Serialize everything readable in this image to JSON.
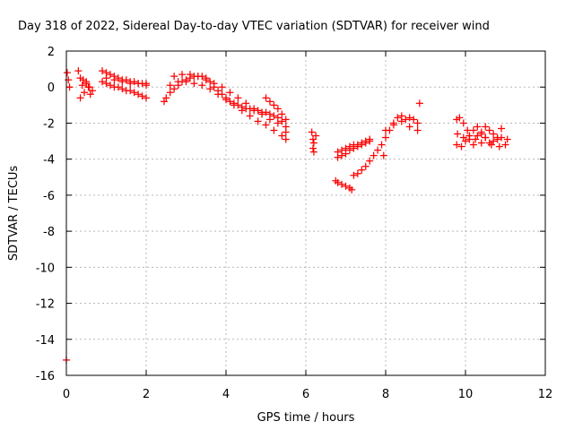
{
  "chart_data": {
    "type": "scatter",
    "title": "Day 318 of 2022, Sidereal Day-to-day VTEC variation (SDTVAR) for receiver wind",
    "xlabel": "GPS time / hours",
    "ylabel": "SDTVAR / TECUs",
    "xlim": [
      0,
      12
    ],
    "ylim": [
      -16,
      2
    ],
    "x_ticks": [
      0,
      2,
      4,
      6,
      8,
      10,
      12
    ],
    "x_tick_labels": [
      "0",
      "2",
      "4",
      "6",
      "8",
      "10",
      "12"
    ],
    "y_ticks": [
      -16,
      -14,
      -12,
      -10,
      -8,
      -6,
      -4,
      -2,
      0,
      2
    ],
    "y_tick_labels": [
      "-16",
      "-14",
      "-12",
      "-10",
      "-8",
      "-6",
      "-4",
      "-2",
      "0",
      "2"
    ],
    "grid": true,
    "marker": "plus",
    "color": "#ff0000",
    "series": [
      {
        "name": "SDTVAR",
        "x": [
          0.0,
          0.02,
          0.05,
          0.08,
          0.3,
          0.35,
          0.4,
          0.45,
          0.5,
          0.55,
          0.6,
          0.65,
          0.35,
          0.42,
          0.5,
          0.58,
          0.9,
          1.0,
          1.1,
          1.2,
          1.3,
          1.4,
          1.5,
          1.6,
          1.7,
          1.8,
          1.9,
          2.0,
          0.9,
          1.0,
          1.1,
          1.2,
          1.3,
          1.4,
          1.5,
          1.6,
          1.7,
          1.8,
          1.9,
          2.0,
          1.0,
          1.2,
          1.4,
          1.6,
          1.8,
          2.0,
          2.45,
          2.5,
          2.6,
          2.7,
          2.8,
          2.9,
          3.0,
          3.1,
          3.2,
          3.3,
          3.4,
          3.5,
          3.6,
          3.7,
          3.8,
          3.9,
          4.0,
          4.1,
          4.2,
          4.3,
          4.4,
          4.5,
          4.6,
          4.7,
          4.8,
          4.9,
          5.0,
          5.1,
          5.2,
          5.3,
          5.4,
          5.5,
          2.6,
          2.8,
          3.0,
          3.2,
          3.4,
          3.6,
          3.8,
          4.0,
          4.2,
          4.4,
          4.6,
          4.8,
          5.0,
          5.2,
          5.4,
          5.5,
          2.7,
          2.9,
          3.1,
          3.3,
          3.5,
          3.7,
          3.9,
          4.1,
          4.3,
          4.5,
          4.7,
          4.9,
          5.1,
          5.3,
          5.5,
          5.0,
          5.1,
          5.2,
          5.3,
          5.4,
          5.5,
          6.15,
          6.18,
          6.2,
          6.25,
          6.18,
          6.2,
          6.8,
          6.9,
          7.0,
          7.1,
          7.2,
          7.3,
          7.4,
          7.5,
          7.6,
          6.8,
          6.9,
          7.0,
          7.1,
          7.2,
          7.3,
          7.4,
          7.5,
          7.6,
          6.75,
          6.8,
          6.9,
          7.0,
          7.1,
          7.15,
          7.2,
          7.3,
          7.4,
          7.5,
          7.6,
          7.7,
          7.8,
          7.9,
          7.95,
          8.0,
          8.1,
          8.2,
          8.3,
          8.4,
          8.5,
          8.6,
          8.7,
          8.8,
          8.0,
          8.2,
          8.4,
          8.6,
          8.8,
          8.85,
          9.78,
          9.85,
          9.95,
          10.05,
          10.1,
          10.2,
          10.3,
          10.4,
          10.5,
          9.78,
          9.9,
          10.0,
          10.1,
          10.2,
          10.3,
          10.4,
          10.5,
          9.8,
          9.95,
          10.1,
          10.25,
          10.4,
          10.5,
          10.6,
          10.7,
          10.8,
          10.9,
          10.6,
          10.7,
          10.8,
          10.9,
          10.65,
          10.85,
          11.0,
          11.05
        ],
        "y": [
          -15.15,
          0.8,
          0.4,
          0.0,
          0.9,
          0.5,
          0.1,
          -0.3,
          0.3,
          0.0,
          -0.4,
          -0.2,
          -0.6,
          0.4,
          0.2,
          0.0,
          0.9,
          0.8,
          0.7,
          0.6,
          0.5,
          0.4,
          0.4,
          0.3,
          0.3,
          0.2,
          0.2,
          0.2,
          0.3,
          0.2,
          0.1,
          0.0,
          0.0,
          -0.1,
          -0.2,
          -0.2,
          -0.3,
          -0.4,
          -0.5,
          -0.6,
          0.5,
          0.4,
          0.3,
          0.2,
          0.2,
          0.1,
          -0.8,
          -0.6,
          -0.3,
          -0.1,
          0.1,
          0.3,
          0.4,
          0.5,
          0.6,
          0.6,
          0.6,
          0.5,
          0.3,
          0.0,
          -0.2,
          -0.4,
          -0.6,
          -0.8,
          -0.9,
          -1.0,
          -1.1,
          -1.2,
          -1.2,
          -1.3,
          -1.3,
          -1.4,
          -1.4,
          -1.5,
          -1.6,
          -1.7,
          -1.9,
          -2.2,
          0.1,
          0.3,
          0.3,
          0.2,
          0.1,
          -0.1,
          -0.4,
          -0.7,
          -1.0,
          -1.3,
          -1.6,
          -1.9,
          -2.1,
          -2.4,
          -2.7,
          -2.9,
          0.6,
          0.7,
          0.7,
          0.6,
          0.4,
          0.2,
          0.0,
          -0.3,
          -0.6,
          -0.9,
          -1.2,
          -1.5,
          -1.8,
          -2.0,
          -2.5,
          -0.6,
          -0.8,
          -1.0,
          -1.2,
          -1.5,
          -1.8,
          -2.5,
          -2.9,
          -3.1,
          -2.7,
          -3.4,
          -3.6,
          -3.6,
          -3.5,
          -3.4,
          -3.3,
          -3.2,
          -3.2,
          -3.1,
          -3.0,
          -2.9,
          -3.9,
          -3.8,
          -3.7,
          -3.5,
          -3.4,
          -3.3,
          -3.2,
          -3.1,
          -3.0,
          -5.2,
          -5.3,
          -5.4,
          -5.5,
          -5.6,
          -5.7,
          -4.9,
          -4.8,
          -4.6,
          -4.4,
          -4.1,
          -3.8,
          -3.5,
          -3.2,
          -3.8,
          -2.8,
          -2.4,
          -2.0,
          -1.7,
          -1.6,
          -1.8,
          -1.7,
          -1.8,
          -2.0,
          -2.4,
          -2.1,
          -1.9,
          -2.2,
          -2.4,
          -0.9,
          -1.8,
          -1.7,
          -2.0,
          -2.4,
          -2.7,
          -2.4,
          -2.2,
          -2.5,
          -2.2,
          -3.2,
          -3.3,
          -3.0,
          -2.9,
          -3.2,
          -2.7,
          -3.1,
          -2.8,
          -2.6,
          -2.8,
          -2.7,
          -2.9,
          -2.6,
          -2.8,
          -3.1,
          -3.0,
          -2.9,
          -2.8,
          -2.4,
          -2.6,
          -2.8,
          -2.3,
          -3.2,
          -3.3,
          -3.2,
          -2.9
        ]
      }
    ]
  }
}
